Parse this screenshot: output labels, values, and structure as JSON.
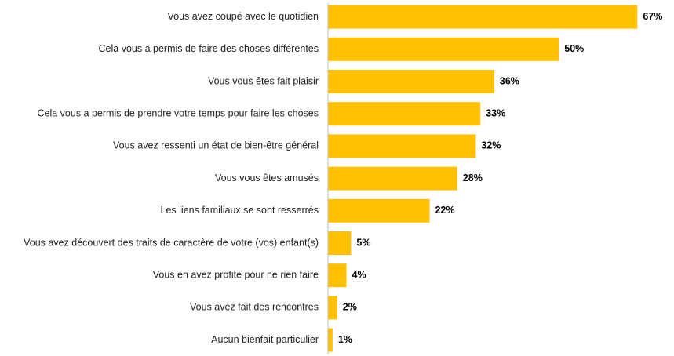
{
  "chart_data": {
    "type": "bar",
    "orientation": "horizontal",
    "categories": [
      "Vous avez coupé avec le quotidien",
      "Cela vous a permis de faire des choses différentes",
      "Vous vous êtes fait plaisir",
      "Cela vous a permis de prendre votre temps pour faire les choses",
      "Vous avez ressenti un état de bien-être général",
      "Vous vous êtes amusés",
      "Les liens familiaux se sont resserrés",
      "Vous avez découvert des traits de caractère de votre (vos) enfant(s)",
      "Vous en avez profité pour ne rien faire",
      "Vous avez fait des rencontres",
      "Aucun bienfait particulier"
    ],
    "values": [
      67,
      50,
      36,
      33,
      32,
      28,
      22,
      5,
      4,
      2,
      1
    ],
    "value_labels": [
      "67%",
      "50%",
      "36%",
      "33%",
      "32%",
      "28%",
      "22%",
      "5%",
      "4%",
      "2%",
      "1%"
    ],
    "color": "#ffc000",
    "xlim": [
      0,
      70
    ]
  }
}
